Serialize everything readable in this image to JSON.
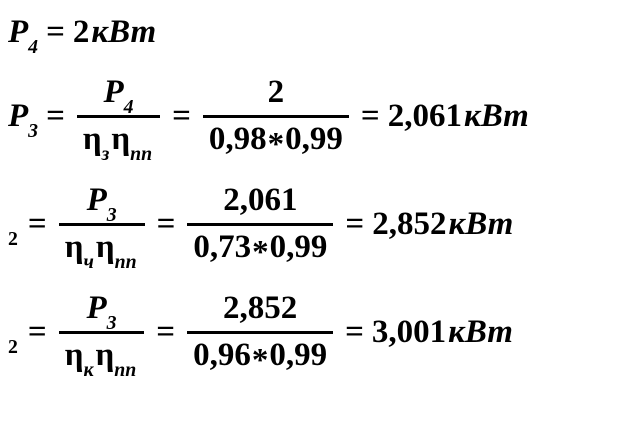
{
  "page": {
    "background": "#ffffff",
    "ink": "#000000"
  },
  "lines": [
    {
      "lhs_base": "P",
      "lhs_sub": "4",
      "eq1": "=",
      "result": "2",
      "unit": "кВт"
    },
    {
      "lhs_base": "P",
      "lhs_sub": "3",
      "eq1": "=",
      "f1_num_base": "P",
      "f1_num_sub": "4",
      "f1_den_eta1": "η",
      "f1_den_sub1": "з",
      "f1_den_eta2": "η",
      "f1_den_sub2": "пп",
      "eq2": "=",
      "f2_num": "2",
      "f2_den_a": "0,98",
      "f2_den_star": "*",
      "f2_den_b": "0,99",
      "eq3": "=",
      "result": "2,061",
      "unit": "кВт"
    },
    {
      "lhs_base": "",
      "lhs_sub": "2",
      "eq1": "=",
      "f1_num_base": "P",
      "f1_num_sub": "3",
      "f1_den_eta1": "η",
      "f1_den_sub1": "ч",
      "f1_den_eta2": "η",
      "f1_den_sub2": "пп",
      "eq2": "=",
      "f2_num": "2,061",
      "f2_den_a": "0,73",
      "f2_den_star": "*",
      "f2_den_b": "0,99",
      "eq3": "=",
      "result": "2,852",
      "unit": "кВт"
    },
    {
      "lhs_base": "",
      "lhs_sub": "2",
      "eq1": "=",
      "f1_num_base": "P",
      "f1_num_sub": "3",
      "f1_den_eta1": "η",
      "f1_den_sub1": "к",
      "f1_den_eta2": "η",
      "f1_den_sub2": "пп",
      "eq2": "=",
      "f2_num": "2,852",
      "f2_den_a": "0,96",
      "f2_den_star": "*",
      "f2_den_b": "0,99",
      "eq3": "=",
      "result": "3,001",
      "unit": "кВт"
    }
  ]
}
